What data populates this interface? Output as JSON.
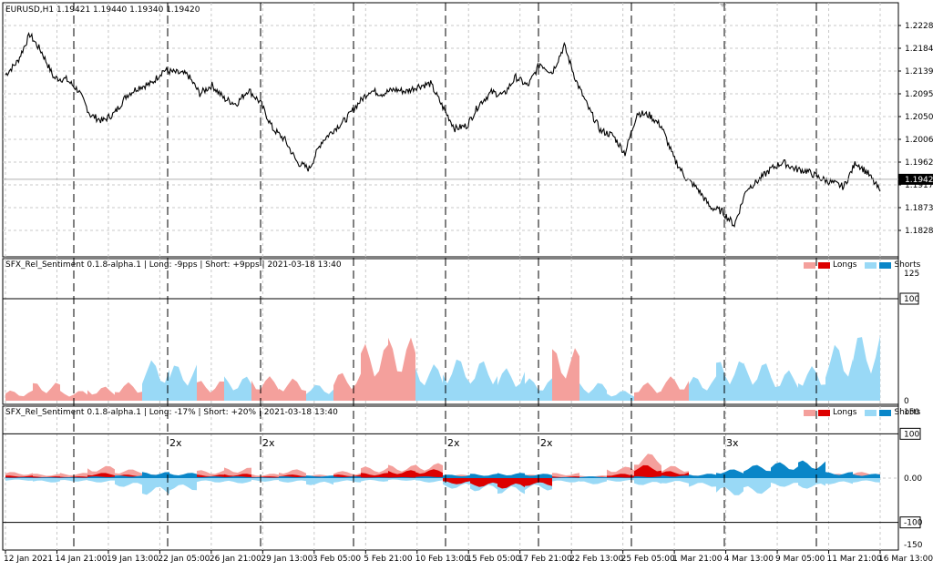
{
  "main": {
    "symbol_line": "EURUSD,H1  1.19421 1.19440 1.19340 1.19420",
    "price_ticks": [
      "1.22280",
      "1.21840",
      "1.21390",
      "1.20950",
      "1.20500",
      "1.20060",
      "1.19620",
      "1.19170",
      "1.18730",
      "1.18280"
    ],
    "current_price": "1.19420"
  },
  "indicator1": {
    "title": "SFX_Rel_Sentiment 0.1.8-alpha.1 | Long: -9pps | Short: +9pps | 2021-03-18 13:40",
    "scale": [
      "125",
      "100",
      "0"
    ],
    "legend": {
      "longs": "Longs",
      "shorts": "Shorts"
    }
  },
  "indicator2": {
    "title": "SFX_Rel_Sentiment 0.1.8-alpha.1 | Long: -17% | Short: +20% | 2021-03-18 13:40",
    "scale": [
      "150",
      "100",
      "0.00",
      "-100",
      "-150"
    ],
    "legend": {
      "longs": "Longs",
      "shorts": "Shorts"
    },
    "multipliers": [
      "2x",
      "2x",
      "2x",
      "2x",
      "3x"
    ]
  },
  "time_axis": [
    "12 Jan 2021",
    "14 Jan 21:00",
    "19 Jan 13:00",
    "22 Jan 05:00",
    "26 Jan 21:00",
    "29 Jan 13:00",
    "3 Feb 05:00",
    "5 Feb 21:00",
    "10 Feb 13:00",
    "15 Feb 05:00",
    "17 Feb 21:00",
    "22 Feb 13:00",
    "25 Feb 05:00",
    "1 Mar 21:00",
    "4 Mar 13:00",
    "9 Mar 05:00",
    "11 Mar 21:00",
    "16 Mar 13:00"
  ],
  "colors": {
    "long_light": "#f4a09c",
    "long_dark": "#dd0000",
    "short_light": "#99d9f6",
    "short_dark": "#0a86c8",
    "price_line": "#000000",
    "grid": "#c8c8c8"
  },
  "chart_data": {
    "type": "line",
    "x_range": [
      "12 Jan 2021",
      "18 Mar 2021"
    ],
    "y_range": [
      1.1828,
      1.2285
    ],
    "series": [
      {
        "values": [
          1.2175,
          1.2205,
          1.2265,
          1.2225,
          1.2168,
          1.2165,
          1.214,
          1.2085,
          1.2072,
          1.209,
          1.213,
          1.2148,
          1.2155,
          1.2185,
          1.218,
          1.2175,
          1.2133,
          1.2152,
          1.2122,
          1.211,
          1.2142,
          1.2112,
          1.2055,
          1.203,
          1.198,
          1.1965,
          1.2025,
          1.2052,
          1.2075,
          1.211,
          1.214,
          1.2133,
          1.2142,
          1.2138,
          1.215,
          1.2155,
          1.2103,
          1.2055,
          1.2062,
          1.211,
          1.2136,
          1.213,
          1.217,
          1.215,
          1.22,
          1.218,
          1.224,
          1.216,
          1.21,
          1.205,
          1.204,
          1.2,
          1.209,
          1.2085,
          1.206,
          1.199,
          1.1945,
          1.192,
          1.188,
          1.187,
          1.184,
          1.192,
          1.194,
          1.1965,
          1.198,
          1.1965,
          1.196,
          1.1945,
          1.1935,
          1.1925,
          1.198,
          1.1955,
          1.1915
        ]
      }
    ],
    "indicator1": {
      "longs": [
        10,
        18,
        10,
        14,
        18,
        4,
        6,
        20,
        12,
        24,
        22,
        14,
        28,
        56,
        62,
        20,
        12,
        18,
        20,
        16,
        52,
        10,
        6,
        18,
        24,
        10,
        4,
        10,
        4,
        16,
        4,
        6
      ],
      "shorts": [
        4,
        8,
        4,
        10,
        4,
        40,
        36,
        12,
        24,
        10,
        8,
        16,
        8,
        6,
        10,
        36,
        42,
        40,
        32,
        22,
        6,
        18,
        10,
        14,
        12,
        24,
        40,
        38,
        30,
        34,
        56,
        66
      ]
    },
    "indicator2": {
      "long_light": [
        14,
        10,
        12,
        28,
        20,
        8,
        6,
        18,
        24,
        10,
        20,
        8,
        16,
        26,
        30,
        34,
        8,
        4,
        6,
        8,
        12,
        6,
        26,
        56,
        28,
        6,
        4,
        6,
        4,
        18,
        10,
        14
      ],
      "long_dark": [
        6,
        4,
        4,
        12,
        8,
        4,
        3,
        8,
        10,
        4,
        8,
        4,
        8,
        12,
        18,
        20,
        -14,
        -20,
        -24,
        -18,
        4,
        3,
        10,
        30,
        16,
        3,
        2,
        3,
        2,
        8,
        4,
        6
      ],
      "short_light": [
        -6,
        -10,
        -8,
        -10,
        -20,
        -38,
        -28,
        -10,
        -12,
        -8,
        -10,
        -16,
        -10,
        -8,
        -6,
        -10,
        -24,
        -30,
        -36,
        -28,
        -10,
        -14,
        -8,
        -16,
        -12,
        -20,
        -40,
        -36,
        -20,
        -24,
        -14,
        -10
      ],
      "short_dark": [
        2,
        2,
        2,
        4,
        6,
        14,
        12,
        4,
        4,
        2,
        4,
        6,
        4,
        2,
        2,
        4,
        8,
        10,
        12,
        10,
        2,
        4,
        2,
        4,
        6,
        10,
        20,
        30,
        36,
        40,
        14,
        10
      ]
    }
  }
}
